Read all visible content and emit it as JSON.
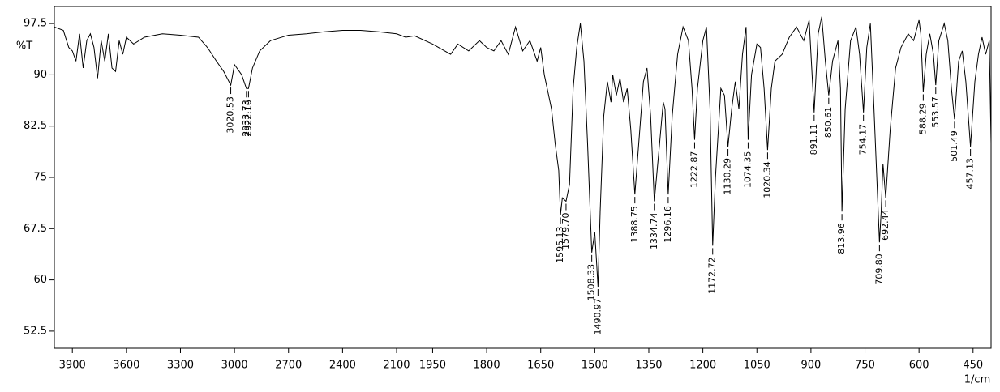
{
  "chart_data": {
    "type": "line",
    "ylabel": "%T",
    "xlabel": "1/cm",
    "xlim": [
      4000,
      400
    ],
    "x_scale_break": 2000,
    "ylim": [
      50,
      100
    ],
    "xticks": [
      3900,
      3600,
      3300,
      3000,
      2700,
      2400,
      2100,
      1950,
      1800,
      1650,
      1500,
      1350,
      1200,
      1050,
      900,
      750,
      600,
      450
    ],
    "yticks": [
      52.5,
      60,
      67.5,
      75,
      82.5,
      90,
      97.5
    ],
    "color": "#000000",
    "x": [
      4000,
      3950,
      3920,
      3900,
      3880,
      3860,
      3840,
      3820,
      3800,
      3780,
      3760,
      3740,
      3720,
      3700,
      3680,
      3660,
      3640,
      3620,
      3600,
      3560,
      3500,
      3400,
      3300,
      3200,
      3150,
      3100,
      3060,
      3020.53,
      3000,
      2960,
      2933.73,
      2922.16,
      2900,
      2860,
      2800,
      2700,
      2600,
      2500,
      2400,
      2300,
      2200,
      2100,
      2050,
      2000,
      1950,
      1900,
      1880,
      1850,
      1820,
      1800,
      1780,
      1760,
      1740,
      1720,
      1700,
      1680,
      1660,
      1650,
      1640,
      1620,
      1610,
      1600,
      1595.13,
      1590,
      1579.7,
      1570,
      1560,
      1550,
      1540,
      1530,
      1520,
      1508.33,
      1500,
      1490.97,
      1485,
      1475,
      1465,
      1455,
      1450,
      1440,
      1430,
      1420,
      1410,
      1400,
      1388.75,
      1375,
      1365,
      1355,
      1345,
      1334.74,
      1320,
      1310,
      1305,
      1296.16,
      1285,
      1270,
      1255,
      1240,
      1230,
      1222.87,
      1215,
      1200,
      1190,
      1180,
      1172.72,
      1165,
      1150,
      1140,
      1130.29,
      1120,
      1110,
      1100,
      1090,
      1080,
      1074.35,
      1065,
      1050,
      1040,
      1030,
      1020.34,
      1010,
      1000,
      980,
      960,
      940,
      920,
      905,
      891.11,
      880,
      870,
      860,
      850.61,
      840,
      825,
      818,
      813.96,
      805,
      790,
      775,
      765,
      754.17,
      745,
      735,
      725,
      709.8,
      705,
      700,
      692.44,
      680,
      665,
      650,
      630,
      615,
      600,
      595,
      588.29,
      580,
      570,
      560,
      553.57,
      545,
      530,
      520,
      510,
      501.49,
      490,
      480,
      470,
      457.13,
      445,
      435,
      425,
      415,
      405,
      400
    ],
    "values": [
      97,
      96.5,
      94,
      93.5,
      92,
      96,
      91,
      95,
      96,
      94,
      89.5,
      95,
      92,
      96,
      91,
      90.5,
      95,
      93,
      95.5,
      94.5,
      95.5,
      96,
      95.8,
      95.5,
      94,
      92,
      90.5,
      88.5,
      91.5,
      90,
      88,
      88,
      91,
      93.5,
      95,
      95.8,
      96,
      96.3,
      96.5,
      96.5,
      96.3,
      96,
      95.5,
      95.7,
      94.5,
      93,
      94.5,
      93.5,
      95,
      94,
      93.5,
      95,
      93,
      97,
      93.5,
      95,
      92,
      94,
      90,
      85,
      80,
      76,
      69.5,
      72,
      71.5,
      74,
      88,
      94,
      97.5,
      92,
      80,
      64,
      67,
      59,
      70,
      84,
      89,
      86,
      90,
      87,
      89.5,
      86,
      88,
      82,
      72.5,
      82,
      89,
      91,
      84,
      71.5,
      80,
      86,
      85,
      72.5,
      84,
      93,
      97,
      95,
      88,
      80.5,
      88,
      95,
      97,
      85,
      65,
      75,
      88,
      87,
      79.5,
      85,
      89,
      85,
      93,
      97,
      80.5,
      90,
      94.5,
      94,
      88,
      79,
      88,
      92,
      93,
      95.5,
      97,
      95,
      98,
      84.5,
      96,
      98.5,
      92,
      87,
      92,
      95,
      88,
      70,
      85,
      95,
      97,
      93,
      84.5,
      94,
      97.5,
      85,
      65.5,
      70,
      77,
      72,
      82,
      91,
      94,
      96,
      95,
      98,
      96,
      87.5,
      93,
      96,
      93,
      88.5,
      95,
      97.5,
      95,
      88,
      83.5,
      92,
      93.5,
      89,
      79.5,
      89,
      93,
      95.5,
      93,
      95,
      80
    ],
    "peak_x": [
      3020.53,
      2933.73,
      2922.16,
      1595.13,
      1579.7,
      1508.33,
      1490.97,
      1388.75,
      1334.74,
      1296.16,
      1222.87,
      1172.72,
      1130.29,
      1074.35,
      1020.34,
      891.11,
      850.61,
      813.96,
      754.17,
      709.8,
      692.44,
      588.29,
      553.57,
      501.49,
      457.13
    ],
    "peak_values": [
      88.5,
      88,
      88,
      69.5,
      71.5,
      64,
      59,
      72.5,
      71.5,
      72.5,
      80.5,
      65,
      79.5,
      80.5,
      79,
      84.5,
      87,
      70,
      84.5,
      65.5,
      72,
      87.5,
      88.5,
      83.5,
      79.5
    ],
    "peak_labels": [
      "3020.53",
      "2933.73",
      "2922.16",
      "1595.13",
      "1579.70",
      "1508.33",
      "1490.97",
      "1388.75",
      "1334.74",
      "1296.16",
      "1222.87",
      "1172.72",
      "1130.29",
      "1074.35",
      "1020.34",
      "891.11",
      "850.61",
      "813.96",
      "754.17",
      "709.80",
      "692.44",
      "588.29",
      "553.57",
      "501.49",
      "457.13"
    ]
  }
}
